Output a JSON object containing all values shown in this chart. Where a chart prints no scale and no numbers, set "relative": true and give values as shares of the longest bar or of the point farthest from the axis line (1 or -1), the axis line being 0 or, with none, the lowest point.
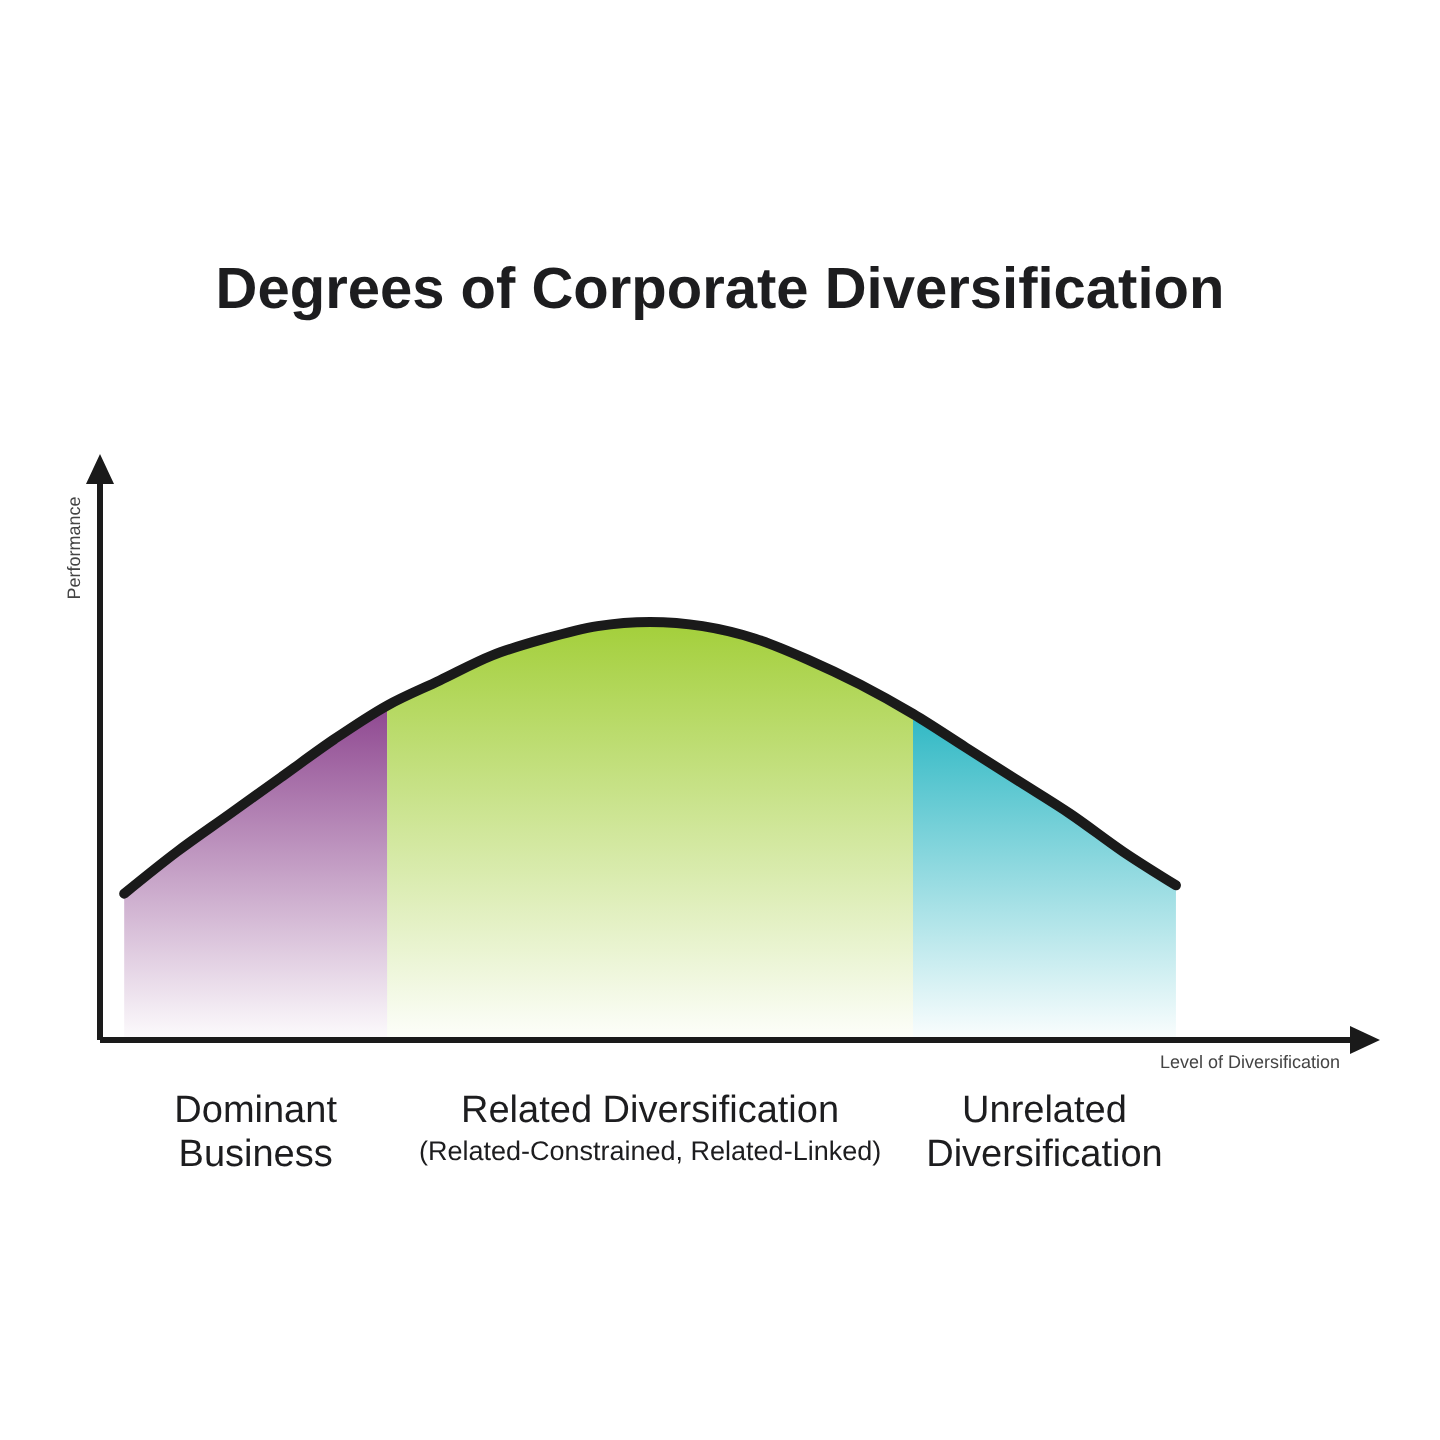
{
  "chart_data": {
    "type": "area",
    "title": "Degrees of Corporate Diversification",
    "xlabel": "Level of Diversification",
    "ylabel": "Performance",
    "relative": true,
    "tick_labels": false,
    "categories": [
      null,
      null,
      null,
      null,
      null,
      null,
      null,
      null,
      null,
      null,
      null,
      null,
      null,
      null,
      null,
      null,
      null,
      null,
      null,
      null,
      null
    ],
    "series": [
      {
        "name": "Dominant Business",
        "color": "#8e4790",
        "values": [
          0.35,
          0.45,
          0.54,
          0.63,
          0.72,
          0.8,
          null,
          null,
          null,
          null,
          null,
          null,
          null,
          null,
          null,
          null,
          null,
          null,
          null,
          null,
          null
        ]
      },
      {
        "name": "Related Diversification (Related-Constrained, Related-Linked)",
        "color": "#a3cf3a",
        "values": [
          null,
          null,
          null,
          null,
          null,
          0.8,
          0.86,
          0.92,
          0.96,
          0.99,
          1,
          0.99,
          0.96,
          0.91,
          0.85,
          0.78,
          null,
          null,
          null,
          null,
          null
        ]
      },
      {
        "name": "Unrelated Diversification",
        "color": "#2fb8c4",
        "values": [
          null,
          null,
          null,
          null,
          null,
          null,
          null,
          null,
          null,
          null,
          null,
          null,
          null,
          null,
          null,
          0.78,
          0.7,
          0.62,
          0.54,
          0.45,
          0.37
        ]
      },
      {
        "type": "line",
        "color": "#1a1a1a",
        "values": [
          0.35,
          0.45,
          0.54,
          0.63,
          0.72,
          0.8,
          0.86,
          0.92,
          0.96,
          0.99,
          1,
          0.99,
          0.96,
          0.91,
          0.85,
          0.78,
          0.7,
          0.62,
          0.54,
          0.45,
          0.37
        ]
      }
    ]
  }
}
